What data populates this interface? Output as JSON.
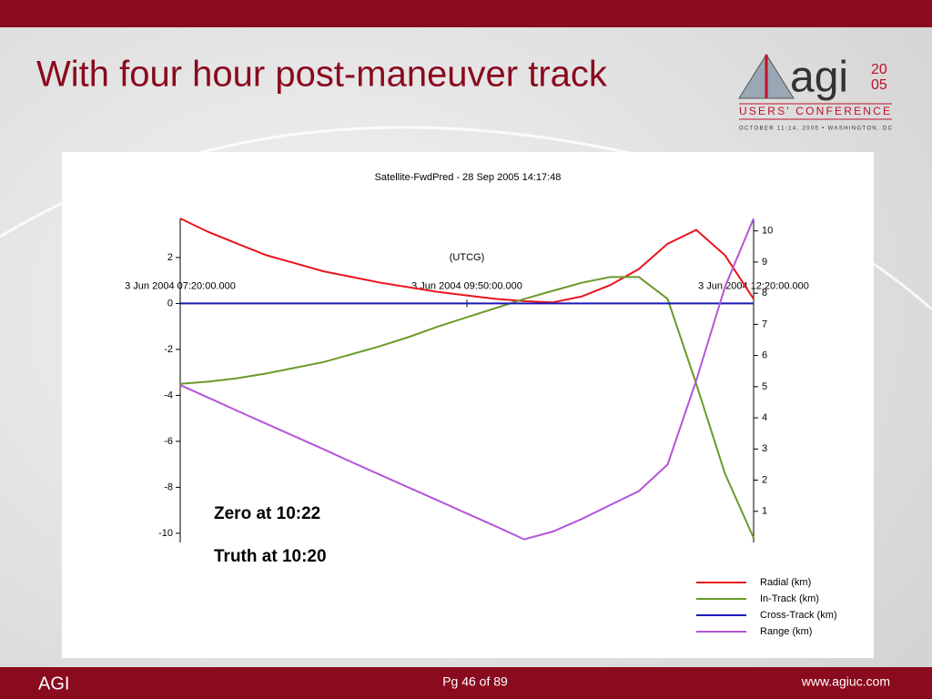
{
  "slide": {
    "title": "With four hour post-maneuver track",
    "logo": {
      "mark": "agi",
      "year_top": "20",
      "year_bottom": "05",
      "subtitle": "USERS' CONFERENCE",
      "dates": "OCTOBER 11-14, 2005 • WASHINGTON, DC"
    },
    "footer": {
      "left": "AGI",
      "center": "Pg 46 of 89",
      "right": "www.agiuc.com"
    }
  },
  "chart_data": {
    "type": "line",
    "title": "Satellite-FwdPred - 28 Sep 2005 14:17:48",
    "x_label": "(UTCG)",
    "x": [
      0,
      15,
      30,
      45,
      60,
      75,
      90,
      105,
      120,
      135,
      150,
      165,
      180,
      195,
      210,
      225,
      240,
      255,
      270,
      285,
      300
    ],
    "xlim": [
      0,
      300
    ],
    "xticks": [
      {
        "value": 0,
        "label": "3 Jun 2004 07:20:00.000"
      },
      {
        "value": 150,
        "label": "3 Jun 2004 09:50:00.000"
      },
      {
        "value": 300,
        "label": "3 Jun 2004 12:20:00.000"
      }
    ],
    "ylim": [
      -10.4,
      3.7
    ],
    "yticks": [
      -10,
      -8,
      -6,
      -4,
      -2,
      0,
      2
    ],
    "y2lim": [
      0,
      10.4
    ],
    "y2ticks": [
      1,
      2,
      3,
      4,
      5,
      6,
      7,
      8,
      9,
      10
    ],
    "annotations": [
      "Zero at 10:22",
      "Truth at 10:20"
    ],
    "legend": "bottom-right",
    "series": [
      {
        "name": "Radial (km)",
        "color": "#e8141c",
        "values": [
          3.7,
          3.1,
          2.6,
          2.1,
          1.75,
          1.4,
          1.15,
          0.9,
          0.7,
          0.5,
          0.35,
          0.2,
          0.1,
          0.05,
          0.3,
          0.8,
          1.5,
          2.6,
          3.2,
          2.1,
          0.2
        ]
      },
      {
        "name": "In-Track (km)",
        "color": "#6b9a2a",
        "values": [
          -3.5,
          -3.4,
          -3.25,
          -3.05,
          -2.8,
          -2.55,
          -2.2,
          -1.85,
          -1.45,
          -1.0,
          -0.6,
          -0.2,
          0.2,
          0.55,
          0.9,
          1.15,
          1.15,
          0.2,
          -3.5,
          -7.4,
          -10.2
        ]
      },
      {
        "name": "Cross-Track (km)",
        "color": "#1a1ab8",
        "values": [
          0,
          0,
          0,
          0,
          0,
          0,
          0,
          0,
          0,
          0,
          0,
          0,
          0,
          0,
          0,
          0,
          0,
          0,
          0,
          0,
          0
        ]
      },
      {
        "name": "Range (km)",
        "color": "#b455d8",
        "axis": "y2",
        "values": [
          5.05,
          4.64,
          4.22,
          3.81,
          3.4,
          2.99,
          2.57,
          2.16,
          1.75,
          1.34,
          0.93,
          0.52,
          0.1,
          0.35,
          0.75,
          1.2,
          1.65,
          2.5,
          5.2,
          8.2,
          10.4
        ]
      }
    ]
  }
}
